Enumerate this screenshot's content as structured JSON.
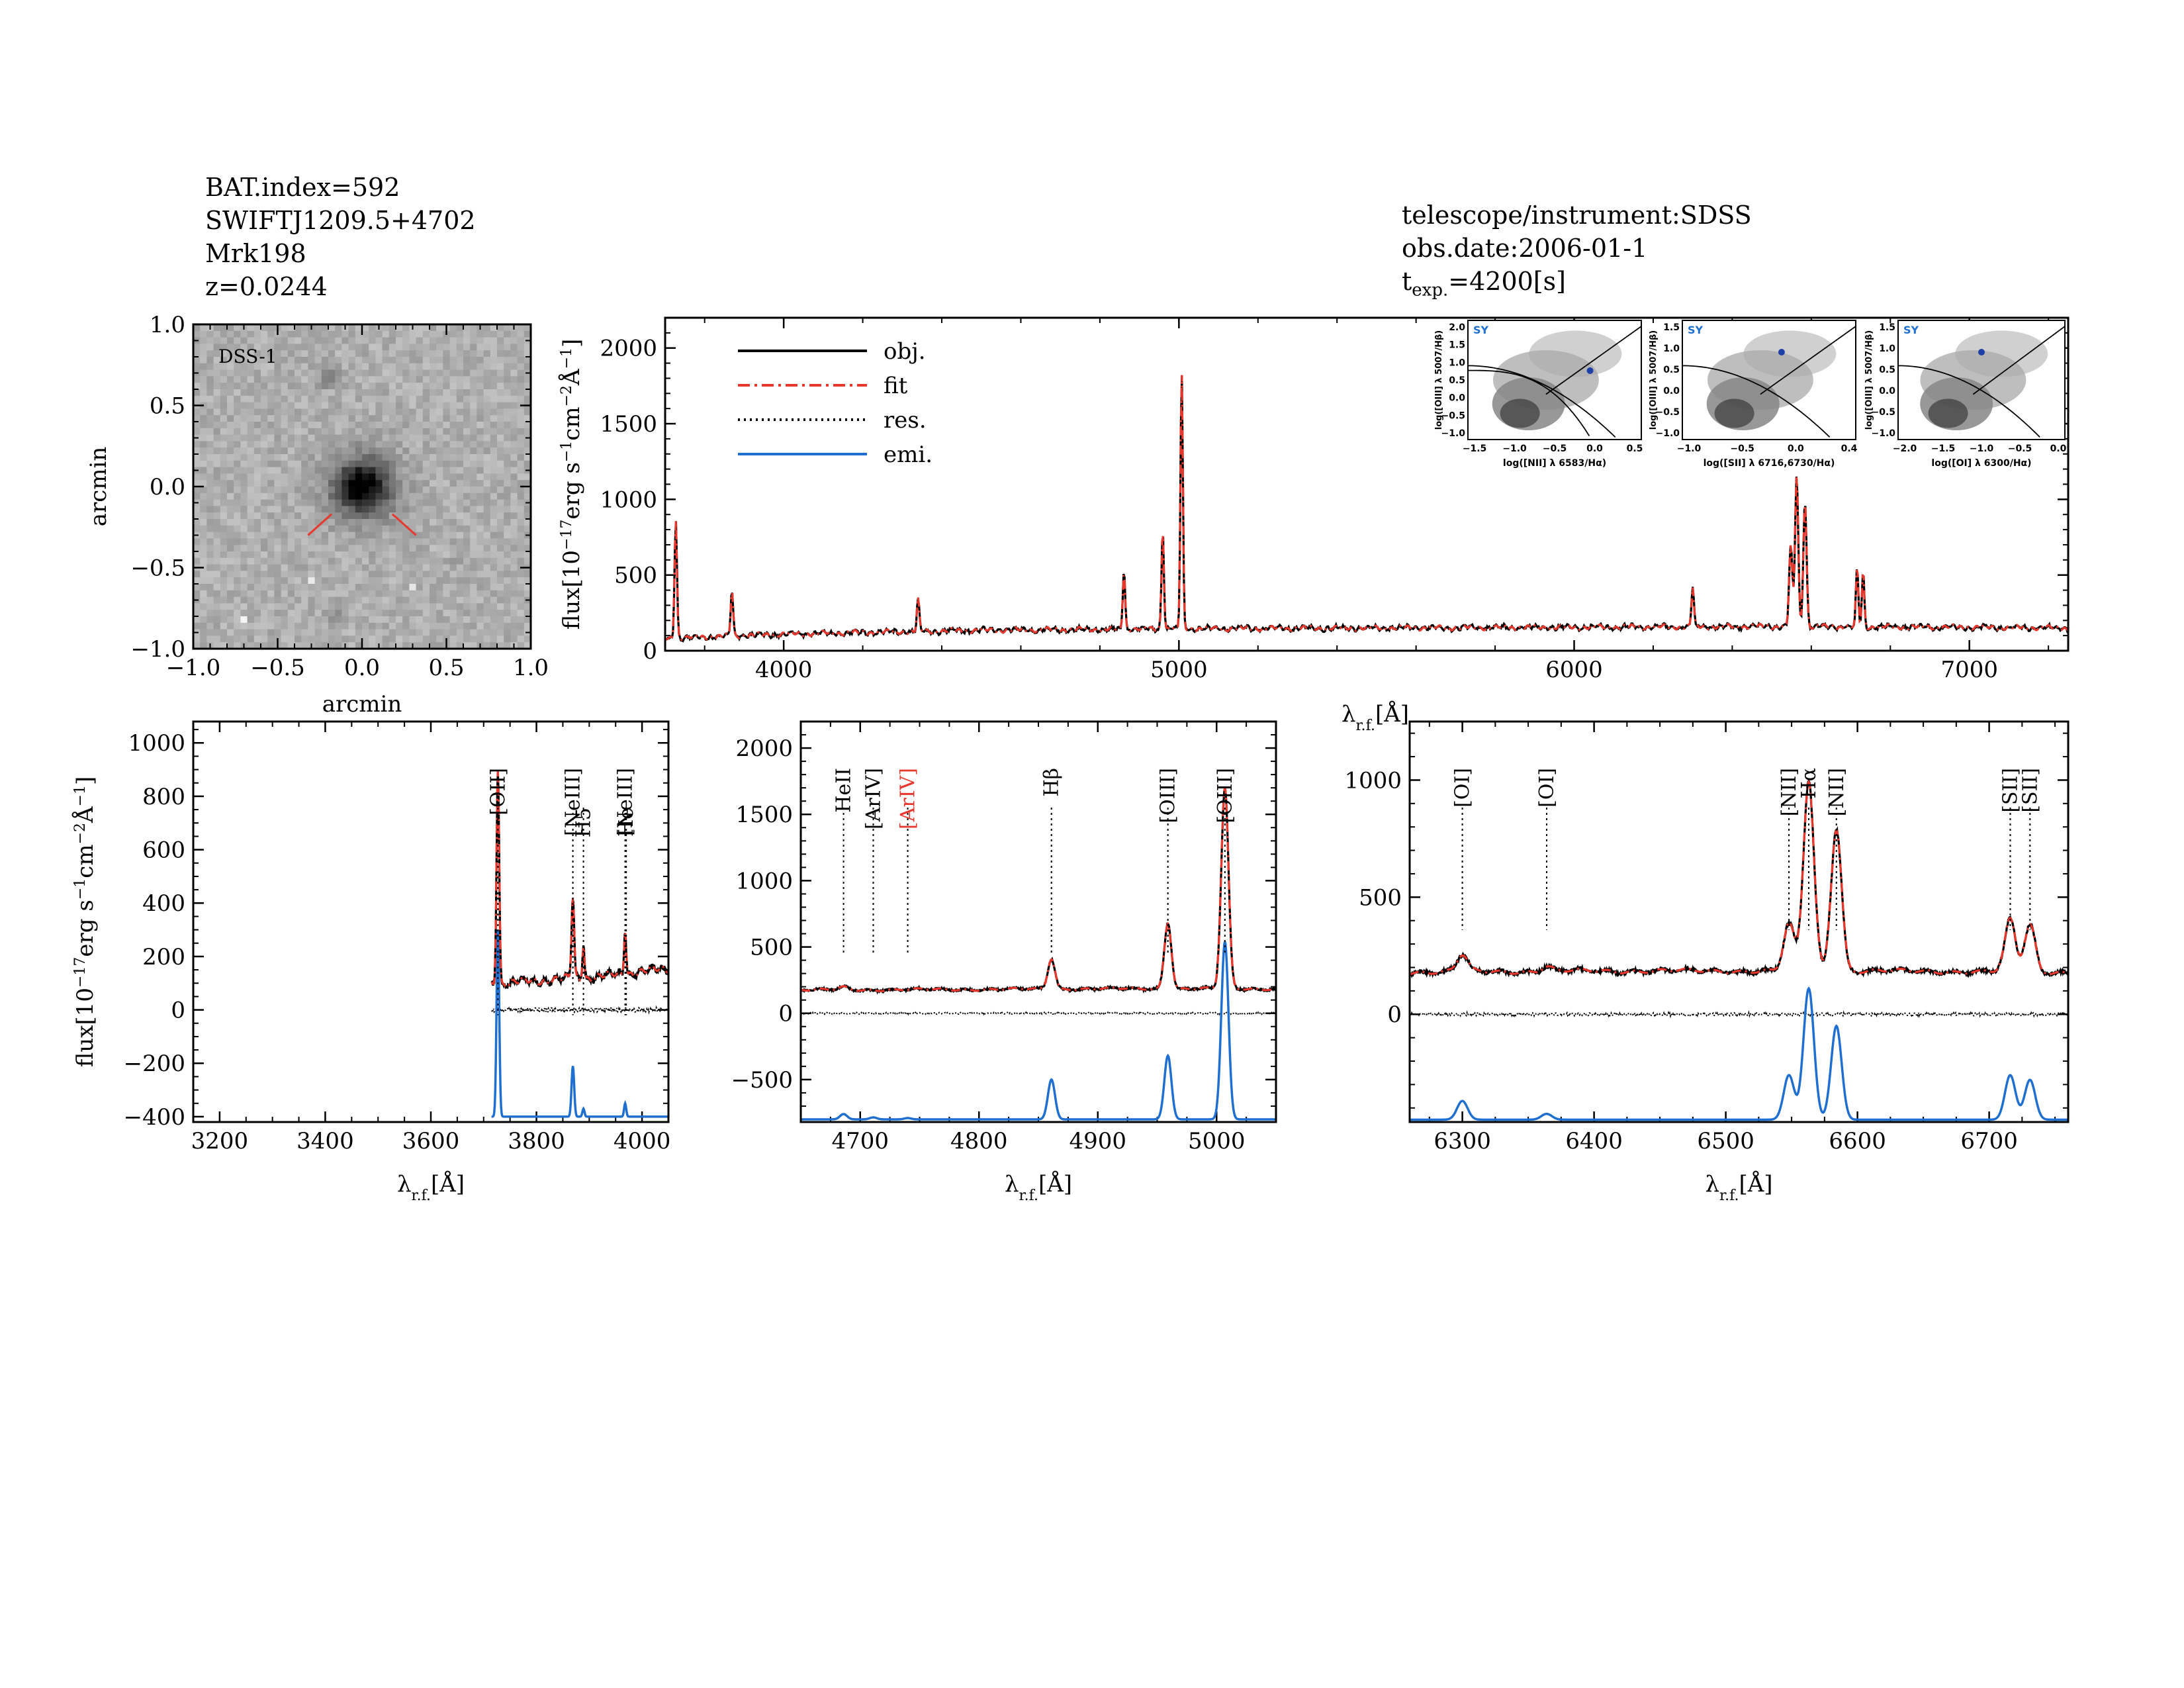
{
  "header": {
    "left_lines": [
      "BAT.index=592",
      "SWIFTJ1209.5+4702",
      "Mrk198",
      "z=0.0244"
    ],
    "telescope": "telescope/instrument:SDSS",
    "obs_date": "obs.date:2006-01-1",
    "texp_prefix": "t",
    "texp_sub": "exp.",
    "texp_value": "=4200[s]"
  },
  "colors": {
    "obj": "#000000",
    "fit": "#e8372c",
    "emi": "#1f6fd1",
    "red_label": "#e8372c"
  },
  "image_panel": {
    "label": "DSS-1",
    "xlabel": "arcmin",
    "ylabel": "arcmin",
    "xticks": [
      "-1.0",
      "-0.5",
      "0.0",
      "0.5",
      "1.0"
    ],
    "yticks": [
      "1.0",
      "0.5",
      "0.0",
      "-0.5",
      "-1.0"
    ]
  },
  "legend": [
    {
      "key": "obj",
      "label": "obj."
    },
    {
      "key": "fit",
      "label": "fit"
    },
    {
      "key": "res",
      "label": "res."
    },
    {
      "key": "emi",
      "label": "emi."
    }
  ],
  "chart_data": [
    {
      "type": "line",
      "name": "full spectrum",
      "xlim": [
        3700,
        7250
      ],
      "ylim": [
        0,
        2200
      ],
      "xticks": [
        4000,
        5000,
        6000,
        7000
      ],
      "yticks": [
        0,
        500,
        1000,
        1500,
        2000
      ],
      "ylabel": "flux[10^-17 erg s^-1 cm^-2 Å^-1]",
      "xlabel": "λr.f.[Å]",
      "continuum": [
        [
          3700,
          80
        ],
        [
          4000,
          110
        ],
        [
          4500,
          135
        ],
        [
          5000,
          145
        ],
        [
          5500,
          150
        ],
        [
          6000,
          155
        ],
        [
          6500,
          160
        ],
        [
          7000,
          155
        ],
        [
          7250,
          150
        ]
      ],
      "lines": [
        {
          "x": 3727,
          "peak": 800,
          "w": 3
        },
        {
          "x": 3869,
          "peak": 300,
          "w": 3
        },
        {
          "x": 4340,
          "peak": 210,
          "w": 3
        },
        {
          "x": 4861,
          "peak": 390,
          "w": 3
        },
        {
          "x": 4959,
          "peak": 670,
          "w": 3
        },
        {
          "x": 5007,
          "peak": 1690,
          "w": 3
        },
        {
          "x": 6300,
          "peak": 260,
          "w": 3
        },
        {
          "x": 6548,
          "peak": 530,
          "w": 4
        },
        {
          "x": 6563,
          "peak": 1000,
          "w": 4
        },
        {
          "x": 6584,
          "peak": 840,
          "w": 4
        },
        {
          "x": 6716,
          "peak": 380,
          "w": 3
        },
        {
          "x": 6731,
          "peak": 360,
          "w": 3
        }
      ]
    },
    {
      "type": "line",
      "name": "OII region",
      "xlim": [
        3150,
        4050
      ],
      "ylim": [
        -420,
        1080
      ],
      "xticks": [
        3200,
        3400,
        3600,
        3800,
        4000
      ],
      "yticks": [
        -400,
        -200,
        0,
        200,
        400,
        600,
        800,
        1000
      ],
      "xlabel": "λr.f.[Å]",
      "ylabel": "flux[10^-17 erg s^-1 cm^-2 Å^-1]",
      "data_start": 3715,
      "continuum": [
        [
          3715,
          95
        ],
        [
          3800,
          110
        ],
        [
          3900,
          120
        ],
        [
          4050,
          155
        ]
      ],
      "lines": [
        {
          "x": 3727,
          "peak": 810,
          "w": 2.5
        },
        {
          "x": 3869,
          "peak": 305,
          "w": 2.5
        },
        {
          "x": 3889,
          "peak": 130,
          "w": 2.0
        },
        {
          "x": 3968,
          "peak": 170,
          "w": 2.0
        }
      ],
      "emi_offset": -400,
      "emi": [
        {
          "x": 3727,
          "peak": 700,
          "w": 2.5
        },
        {
          "x": 3869,
          "peak": 190,
          "w": 2.5
        },
        {
          "x": 3889,
          "peak": 30,
          "w": 2.0
        },
        {
          "x": 3968,
          "peak": 50,
          "w": 2.0
        }
      ],
      "annotations": [
        {
          "label": "[OII]",
          "x": 3727,
          "color": "#000000"
        },
        {
          "label": "[NeIII]",
          "x": 3869,
          "color": "#000000"
        },
        {
          "label": "H5",
          "x": 3889,
          "color": "#000000"
        },
        {
          "label": "[NeIII]",
          "x": 3968,
          "color": "#000000"
        },
        {
          "label": "He",
          "x": 3970,
          "color": "#000000"
        }
      ]
    },
    {
      "type": "line",
      "name": "Hbeta OIII region",
      "xlim": [
        4650,
        5050
      ],
      "ylim": [
        -820,
        2200
      ],
      "xticks": [
        4700,
        4800,
        4900,
        5000
      ],
      "yticks": [
        -500,
        0,
        500,
        1000,
        1500,
        2000
      ],
      "xlabel": "λr.f.[Å]",
      "continuum": [
        [
          4650,
          175
        ],
        [
          4800,
          180
        ],
        [
          4900,
          185
        ],
        [
          5050,
          185
        ]
      ],
      "lines": [
        {
          "x": 4686,
          "peak": 20,
          "w": 4
        },
        {
          "x": 4861,
          "peak": 230,
          "w": 3
        },
        {
          "x": 4959,
          "peak": 500,
          "w": 3
        },
        {
          "x": 5007,
          "peak": 1510,
          "w": 3
        }
      ],
      "emi_offset": -800,
      "emi": [
        {
          "x": 4686,
          "peak": 40,
          "w": 3
        },
        {
          "x": 4711,
          "peak": 15,
          "w": 3
        },
        {
          "x": 4740,
          "peak": 10,
          "w": 3
        },
        {
          "x": 4861,
          "peak": 300,
          "w": 3
        },
        {
          "x": 4959,
          "peak": 480,
          "w": 3
        },
        {
          "x": 5007,
          "peak": 1340,
          "w": 3
        }
      ],
      "annotations": [
        {
          "label": "HeII",
          "x": 4686,
          "color": "#000000"
        },
        {
          "label": "[ArIV]",
          "x": 4711,
          "color": "#000000"
        },
        {
          "label": "[ArIV]",
          "x": 4740,
          "color": "#e8372c"
        },
        {
          "label": "Hβ",
          "x": 4861,
          "color": "#000000"
        },
        {
          "label": "[OIII]",
          "x": 4959,
          "color": "#000000"
        },
        {
          "label": "[OIII]",
          "x": 5007,
          "color": "#000000"
        }
      ]
    },
    {
      "type": "line",
      "name": "Halpha NII SII region",
      "xlim": [
        6260,
        6760
      ],
      "ylim": [
        -460,
        1250
      ],
      "xticks": [
        6300,
        6400,
        6500,
        6600,
        6700
      ],
      "yticks": [
        0,
        500,
        1000
      ],
      "xlabel": "λr.f.[Å]",
      "continuum": [
        [
          6260,
          180
        ],
        [
          6400,
          185
        ],
        [
          6600,
          185
        ],
        [
          6760,
          180
        ]
      ],
      "lines": [
        {
          "x": 6300,
          "peak": 70,
          "w": 4
        },
        {
          "x": 6364,
          "peak": 20,
          "w": 4
        },
        {
          "x": 6548,
          "peak": 200,
          "w": 4
        },
        {
          "x": 6563,
          "peak": 810,
          "w": 4
        },
        {
          "x": 6584,
          "peak": 610,
          "w": 4
        },
        {
          "x": 6716,
          "peak": 220,
          "w": 4
        },
        {
          "x": 6731,
          "peak": 200,
          "w": 4
        }
      ],
      "emi_offset": -450,
      "emi": [
        {
          "x": 6300,
          "peak": 80,
          "w": 4
        },
        {
          "x": 6364,
          "peak": 25,
          "w": 4
        },
        {
          "x": 6548,
          "peak": 190,
          "w": 4
        },
        {
          "x": 6563,
          "peak": 560,
          "w": 4
        },
        {
          "x": 6584,
          "peak": 400,
          "w": 4
        },
        {
          "x": 6716,
          "peak": 190,
          "w": 4
        },
        {
          "x": 6731,
          "peak": 170,
          "w": 4
        }
      ],
      "annotations": [
        {
          "label": "[OI]",
          "x": 6300,
          "color": "#000000"
        },
        {
          "label": "[OI]",
          "x": 6364,
          "color": "#000000"
        },
        {
          "label": "[NII]",
          "x": 6548,
          "color": "#000000"
        },
        {
          "label": "Hα",
          "x": 6563,
          "color": "#000000"
        },
        {
          "label": "[NII]",
          "x": 6584,
          "color": "#000000"
        },
        {
          "label": "[SII]",
          "x": 6716,
          "color": "#000000"
        },
        {
          "label": "[SII]",
          "x": 6731,
          "color": "#000000"
        }
      ]
    }
  ],
  "bpt": [
    {
      "tag": "SY",
      "xlabel": "log([NII] λ 6583/Hα)",
      "ylabel": "log([OIII] λ 5007/Hβ)",
      "xticks": [
        "-1.5",
        "-1.0",
        "-0.5",
        "0.0",
        "0.5"
      ],
      "yticks": [
        "2.0",
        "1.5",
        "1.0",
        "0.5",
        "0.0",
        "-0.5",
        "-1.0"
      ],
      "xlim": [
        -1.6,
        0.6
      ],
      "ylim": [
        -1.1,
        2.1
      ],
      "point": [
        -0.05,
        0.75
      ]
    },
    {
      "tag": "SY",
      "xlabel": "log([SII] λ 6716,6730/Hα)",
      "ylabel": "log([OIII] λ 5007/Hβ)",
      "xticks": [
        "-1.0",
        "-0.5",
        "0.0",
        "0.4"
      ],
      "yticks": [
        "1.5",
        "1.0",
        "0.5",
        "0.0",
        "-0.5",
        "-1.0"
      ],
      "xlim": [
        -1.3,
        0.5
      ],
      "ylim": [
        -1.1,
        1.6
      ],
      "point": [
        -0.27,
        0.88
      ]
    },
    {
      "tag": "SY",
      "xlabel": "log([OI] λ 6300/Hα)",
      "ylabel": "log([OIII] λ 5007/Hβ)",
      "xticks": [
        "-2.0",
        "-1.5",
        "-1.0",
        "-0.5",
        "0.0"
      ],
      "yticks": [
        "1.5",
        "1.0",
        "0.5",
        "0.0",
        "-0.5",
        "-1.0"
      ],
      "xlim": [
        -2.2,
        0.1
      ],
      "ylim": [
        -1.1,
        1.6
      ],
      "point": [
        -1.05,
        0.88
      ]
    }
  ]
}
